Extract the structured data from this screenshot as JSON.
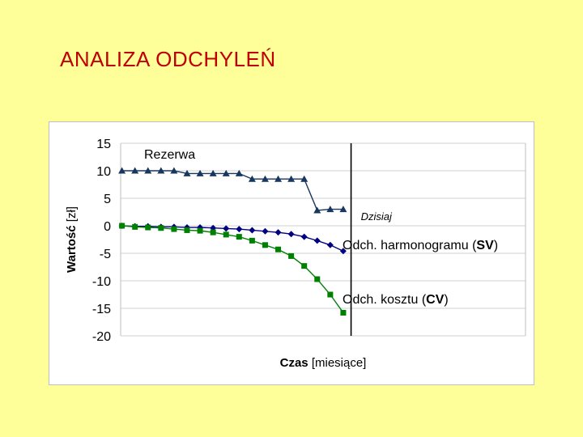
{
  "slide": {
    "title": "ANALIZA ODCHYLEŃ"
  },
  "chart_data": {
    "type": "line",
    "ylim": [
      -20,
      15
    ],
    "yticks": [
      15,
      10,
      5,
      0,
      -5,
      -10,
      -15,
      -20
    ],
    "ylabel": {
      "bold": "Wartość",
      "normal": "[zł]"
    },
    "xlabel": {
      "bold": "Czas",
      "normal": "[miesiące]"
    },
    "x": [
      1,
      2,
      3,
      4,
      5,
      6,
      7,
      8,
      9,
      10,
      11,
      12,
      13,
      14,
      15,
      16,
      17,
      18
    ],
    "today_x": 18.6,
    "today_label": "Dzisiaj",
    "grid": true,
    "series": [
      {
        "name": "Rezerwa",
        "label": {
          "text": "Rezerwa"
        },
        "color": "#17375E",
        "marker": "triangle",
        "values": [
          10,
          10,
          10,
          10,
          10,
          9.5,
          9.5,
          9.5,
          9.5,
          9.5,
          8.5,
          8.5,
          8.5,
          8.5,
          8.5,
          2.8,
          3,
          3
        ]
      },
      {
        "name": "Odch. harmonogramu (SV)",
        "label": {
          "before": "Odch. harmonogramu (",
          "bold": "SV",
          "after": ")"
        },
        "color": "#000080",
        "marker": "diamond",
        "values": [
          0,
          -0.1,
          -0.1,
          -0.2,
          -0.2,
          -0.3,
          -0.3,
          -0.4,
          -0.5,
          -0.6,
          -0.8,
          -1.0,
          -1.2,
          -1.5,
          -2.0,
          -2.7,
          -3.5,
          -4.6
        ]
      },
      {
        "name": "Odch. kosztu (CV)",
        "label": {
          "before": "Odch. kosztu (",
          "bold": "CV",
          "after": ")"
        },
        "color": "#008000",
        "marker": "square",
        "values": [
          0,
          -0.2,
          -0.3,
          -0.4,
          -0.6,
          -0.8,
          -0.9,
          -1.2,
          -1.6,
          -2.0,
          -2.7,
          -3.5,
          -4.3,
          -5.5,
          -7.3,
          -9.7,
          -12.5,
          -15.8
        ]
      }
    ]
  }
}
